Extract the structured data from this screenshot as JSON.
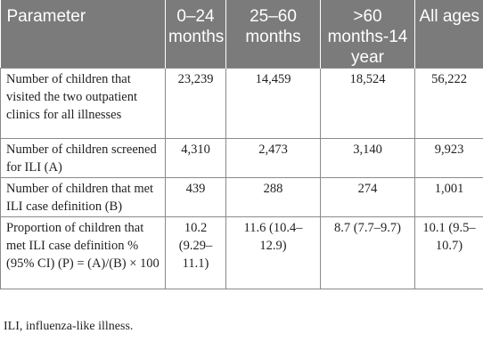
{
  "table": {
    "headers": [
      "Parameter",
      "0–24 months",
      "25–60 months",
      ">60 months-14 year",
      "All ages"
    ],
    "rows": [
      {
        "parameter": "Number of children that visited the two outpatient clinics for all illnesses",
        "values": [
          "23,239",
          "14,459",
          "18,524",
          "56,222"
        ]
      },
      {
        "parameter": "Number of children screened for ILI (A)",
        "values": [
          "4,310",
          "2,473",
          "3,140",
          "9,923"
        ]
      },
      {
        "parameter": "Number of children that met ILI case definition (B)",
        "values": [
          "439",
          "288",
          "274",
          "1,001"
        ]
      },
      {
        "parameter": "Proportion of children that met ILI case definition % (95% CI) (P) = (A)/(B) × 100",
        "values": [
          "10.2 (9.29–11.1)",
          "11.6 (10.4–12.9)",
          "8.7 (7.7–9.7)",
          "10.1 (9.5–10.7)"
        ]
      }
    ]
  },
  "footnote": "ILI, influenza-like illness.",
  "colors": {
    "header_background": "#7b7b7b",
    "header_text": "#ffffff",
    "border": "#8a8a8a",
    "body_text": "#222222"
  }
}
